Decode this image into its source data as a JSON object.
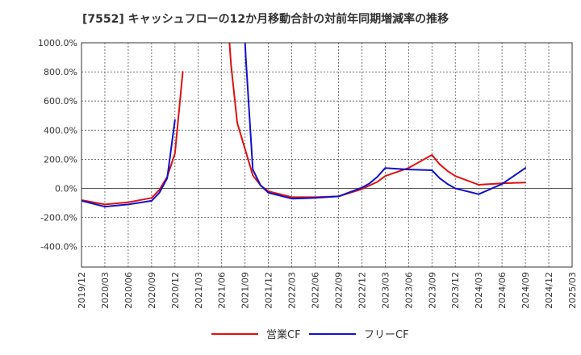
{
  "chart_data": {
    "type": "line",
    "title": "[7552]  キャッシュフローの12か月移動合計の対前年同期増減率の推移",
    "ylim": [
      -540,
      1000
    ],
    "yticks": [
      -400,
      -200,
      0,
      200,
      400,
      600,
      800,
      1000
    ],
    "ytick_labels": [
      "-400.0%",
      "-200.0%",
      "0.0%",
      "200.0%",
      "400.0%",
      "600.0%",
      "800.0%",
      "1000.0%"
    ],
    "xlim": [
      "2019/12",
      "2025/03"
    ],
    "x_ticks": [
      "2019/12",
      "2020/03",
      "2020/06",
      "2020/09",
      "2020/12",
      "2021/03",
      "2021/06",
      "2021/09",
      "2021/12",
      "2022/03",
      "2022/06",
      "2022/09",
      "2022/12",
      "2023/03",
      "2023/06",
      "2023/09",
      "2023/12",
      "2024/03",
      "2024/06",
      "2024/09",
      "2024/12",
      "2025/03"
    ],
    "legend_position": "bottom-center",
    "series": [
      {
        "name": "営業CF",
        "color": "#dd1111",
        "segments": [
          [
            [
              "2019/12",
              -80
            ],
            [
              "2020/03",
              -110
            ],
            [
              "2020/06",
              -95
            ],
            [
              "2020/09",
              -65
            ],
            [
              "2020/10",
              -10
            ],
            [
              "2020/11",
              80
            ],
            [
              "2020/12",
              240
            ],
            [
              "2021/01",
              800
            ]
          ],
          [
            [
              "2021/07",
              1000
            ],
            [
              "2021/07.2",
              850
            ],
            [
              "2021/08",
              450
            ],
            [
              "2021/09",
              270
            ],
            [
              "2021/10",
              90
            ],
            [
              "2021/11",
              20
            ],
            [
              "2021/12",
              -20
            ],
            [
              "2022/03",
              -60
            ],
            [
              "2022/06",
              -60
            ],
            [
              "2022/09",
              -55
            ],
            [
              "2022/12",
              -5
            ],
            [
              "2023/01",
              20
            ],
            [
              "2023/02",
              45
            ],
            [
              "2023/03",
              85
            ],
            [
              "2023/06",
              140
            ],
            [
              "2023/09",
              230
            ],
            [
              "2023/10",
              165
            ],
            [
              "2023/11",
              120
            ],
            [
              "2023/12",
              85
            ],
            [
              "2024/03",
              25
            ],
            [
              "2024/06",
              35
            ],
            [
              "2024/09",
              40
            ]
          ]
        ]
      },
      {
        "name": "フリーCF",
        "color": "#1111cc",
        "segments": [
          [
            [
              "2019/12",
              -85
            ],
            [
              "2020/03",
              -125
            ],
            [
              "2020/06",
              -110
            ],
            [
              "2020/09",
              -85
            ],
            [
              "2020/10",
              -30
            ],
            [
              "2020/11",
              70
            ],
            [
              "2020/12",
              470
            ]
          ],
          [
            [
              "2021/09",
              1000
            ],
            [
              "2021/09.1",
              900
            ],
            [
              "2021/10",
              130
            ],
            [
              "2021/11",
              20
            ],
            [
              "2021/12",
              -30
            ],
            [
              "2022/03",
              -70
            ],
            [
              "2022/06",
              -65
            ],
            [
              "2022/09",
              -55
            ],
            [
              "2022/12",
              5
            ],
            [
              "2023/01",
              35
            ],
            [
              "2023/02",
              80
            ],
            [
              "2023/03",
              140
            ],
            [
              "2023/06",
              130
            ],
            [
              "2023/09",
              125
            ],
            [
              "2023/10",
              70
            ],
            [
              "2023/11",
              30
            ],
            [
              "2023/12",
              0
            ],
            [
              "2024/03",
              -40
            ],
            [
              "2024/06",
              30
            ],
            [
              "2024/09",
              140
            ]
          ]
        ]
      }
    ]
  }
}
